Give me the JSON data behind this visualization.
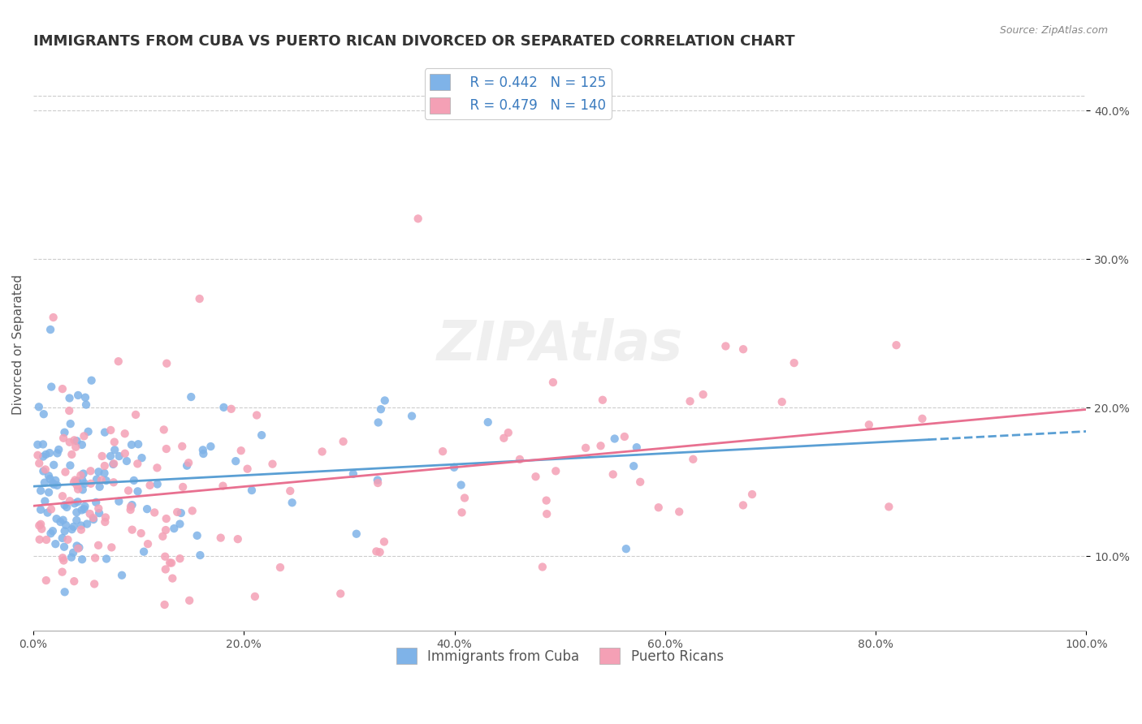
{
  "title": "IMMIGRANTS FROM CUBA VS PUERTO RICAN DIVORCED OR SEPARATED CORRELATION CHART",
  "source_text": "Source: ZipAtlas.com",
  "ylabel": "Divorced or Separated",
  "xlim": [
    0.0,
    1.0
  ],
  "ylim": [
    0.05,
    0.435
  ],
  "xtick_labels": [
    "0.0%",
    "20.0%",
    "40.0%",
    "60.0%",
    "80.0%",
    "100.0%"
  ],
  "xtick_vals": [
    0.0,
    0.2,
    0.4,
    0.6,
    0.8,
    1.0
  ],
  "ytick_labels": [
    "10.0%",
    "20.0%",
    "30.0%",
    "40.0%"
  ],
  "ytick_vals": [
    0.1,
    0.2,
    0.3,
    0.4
  ],
  "grid_color": "#cccccc",
  "background_color": "#ffffff",
  "watermark": "ZIPAtlas",
  "series": [
    {
      "name": "Immigrants from Cuba",
      "color": "#7fb3e8",
      "R": 0.442,
      "N": 125,
      "line_color": "#5a9fd4",
      "trend_solid_end": 0.85,
      "trend_dashed_end": 1.0
    },
    {
      "name": "Puerto Ricans",
      "color": "#f4a0b5",
      "R": 0.479,
      "N": 140,
      "line_color": "#e87090",
      "trend_solid_end": 1.0
    }
  ],
  "title_fontsize": 13,
  "axis_label_fontsize": 11,
  "tick_fontsize": 10,
  "legend_fontsize": 12
}
